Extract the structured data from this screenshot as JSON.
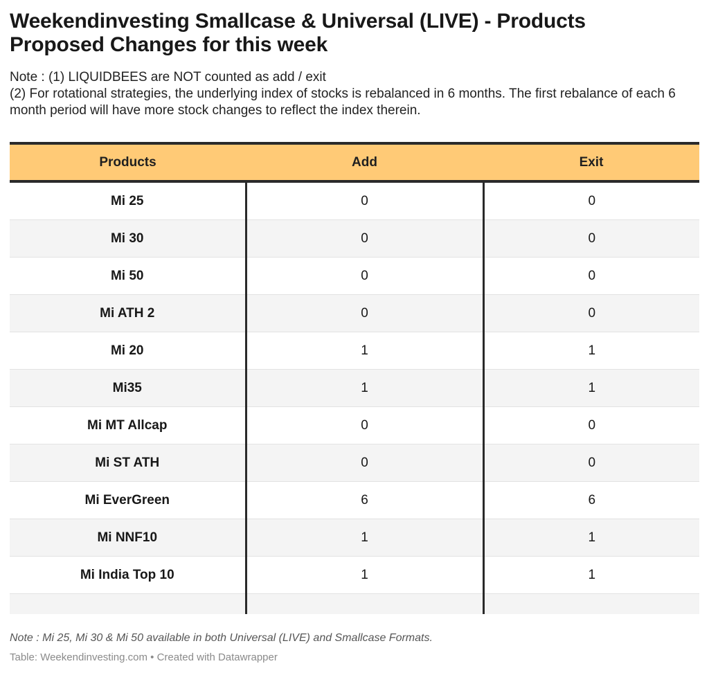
{
  "header": {
    "title": "Weekendinvesting Smallcase & Universal (LIVE) - Products Proposed Changes for this week",
    "note_line1": "Note : (1) LIQUIDBEES are NOT counted as add / exit",
    "note_line2": "(2) For rotational strategies, the underlying index of stocks is rebalanced in 6 months. The first rebalance of each 6 month period will have more stock changes to reflect the index therein."
  },
  "chart_data": {
    "type": "table",
    "columns": [
      "Products",
      "Add",
      "Exit"
    ],
    "rows": [
      {
        "product": "Mi 25",
        "add": "0",
        "exit": "0"
      },
      {
        "product": "Mi 30",
        "add": "0",
        "exit": "0"
      },
      {
        "product": "Mi 50",
        "add": "0",
        "exit": "0"
      },
      {
        "product": "Mi ATH 2",
        "add": "0",
        "exit": "0"
      },
      {
        "product": "Mi 20",
        "add": "1",
        "exit": "1"
      },
      {
        "product": "Mi35",
        "add": "1",
        "exit": "1"
      },
      {
        "product": "Mi MT Allcap",
        "add": "0",
        "exit": "0"
      },
      {
        "product": "Mi ST ATH",
        "add": "0",
        "exit": "0"
      },
      {
        "product": "Mi EverGreen",
        "add": "6",
        "exit": "6"
      },
      {
        "product": "Mi NNF10",
        "add": "1",
        "exit": "1"
      },
      {
        "product": "Mi India Top 10",
        "add": "1",
        "exit": "1"
      }
    ],
    "header_color": "#ffca76"
  },
  "footer": {
    "note": "Note : Mi 25, Mi 30 & Mi 50 available in both Universal (LIVE) and Smallcase Formats.",
    "source": "Table: Weekendinvesting.com • Created with Datawrapper"
  }
}
